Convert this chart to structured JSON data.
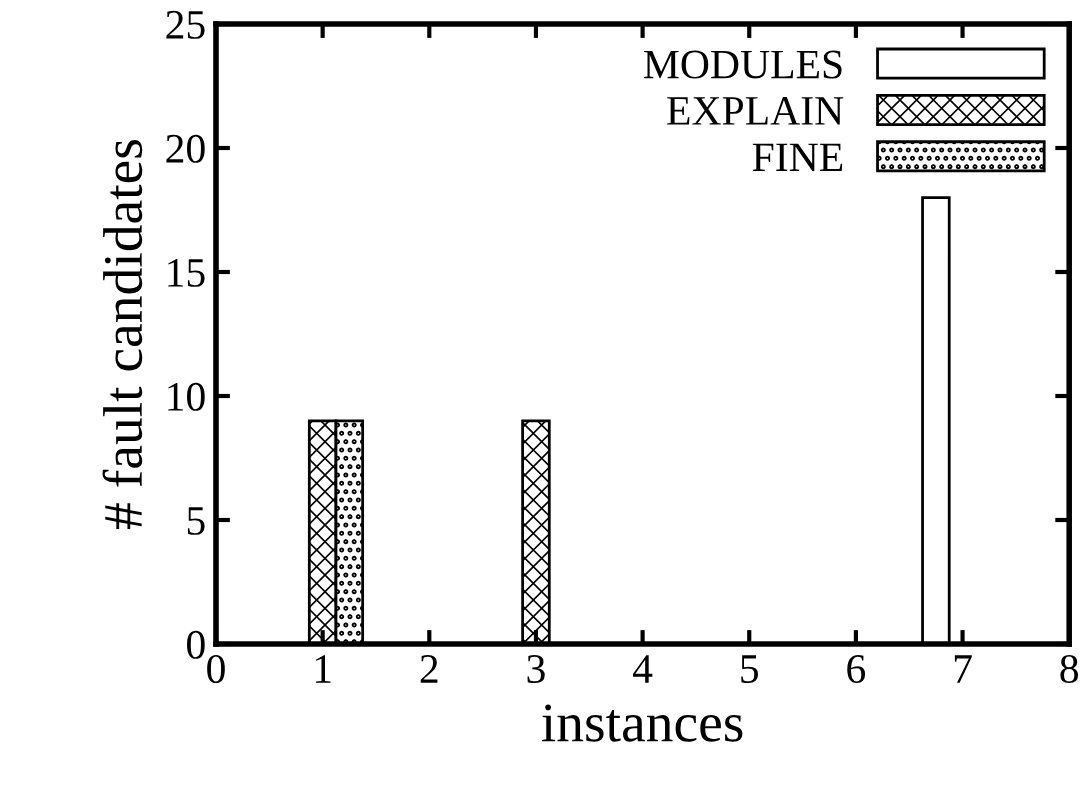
{
  "chart_data": {
    "type": "bar",
    "xlabel": "instances",
    "ylabel": "# fault candidates",
    "xlim": [
      0,
      8
    ],
    "xticks": [
      0,
      1,
      2,
      3,
      4,
      5,
      6,
      7,
      8
    ],
    "ylim": [
      0,
      25
    ],
    "yticks": [
      0,
      5,
      10,
      15,
      20,
      25
    ],
    "series": [
      {
        "name": "MODULES",
        "color": "#ffffff",
        "x": [
          6.75
        ],
        "values": [
          18
        ]
      },
      {
        "name": "EXPLAIN",
        "color": "#000000",
        "x": [
          1,
          3
        ],
        "values": [
          9,
          9
        ]
      },
      {
        "name": "FINE",
        "color": "#000000",
        "x": [
          1.25
        ],
        "values": [
          9
        ]
      }
    ],
    "legend": "top right",
    "grid": false
  }
}
